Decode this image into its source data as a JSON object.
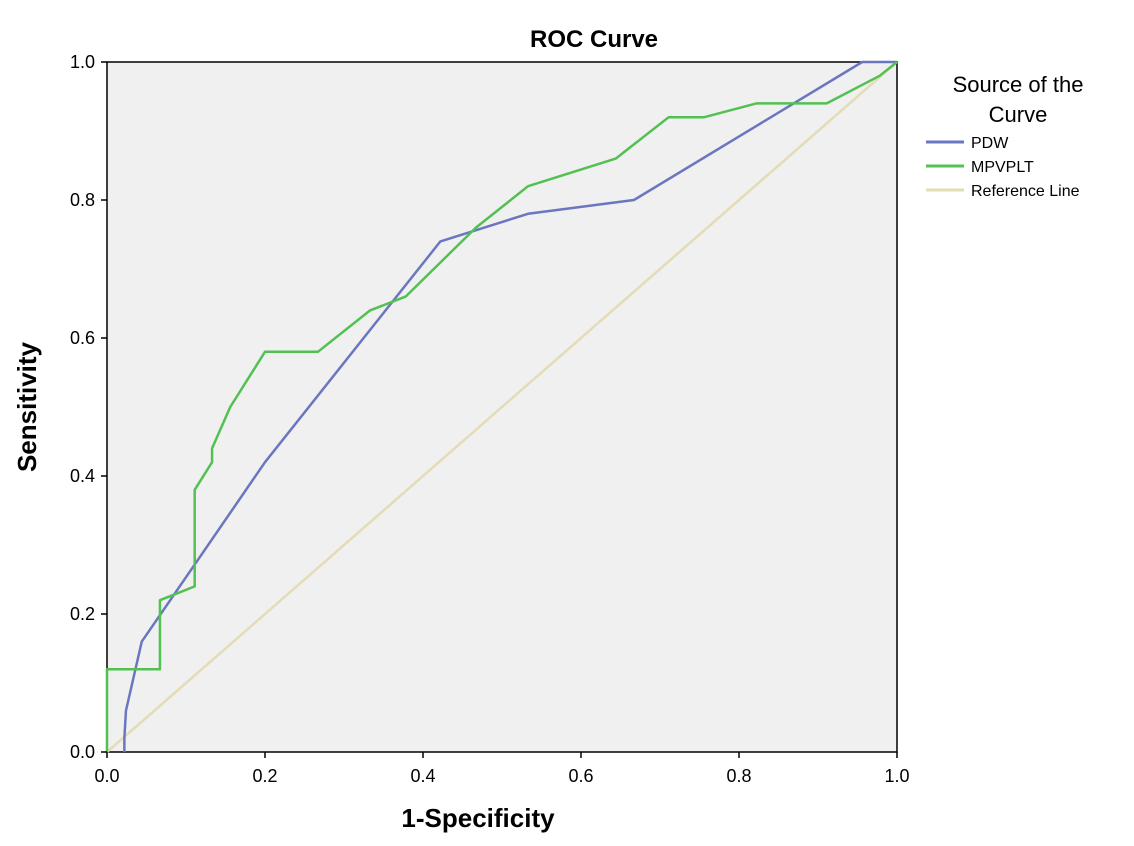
{
  "chart_data": {
    "type": "line",
    "title": "ROC Curve",
    "xlabel": "1-Specificity",
    "ylabel": "Sensitivity",
    "xlim": [
      0,
      1
    ],
    "ylim": [
      0,
      1
    ],
    "x_ticks": [
      "0.0",
      "0.2",
      "0.4",
      "0.6",
      "0.8",
      "1.0"
    ],
    "y_ticks": [
      "0.0",
      "0.2",
      "0.4",
      "0.6",
      "0.8",
      "1.0"
    ],
    "grid": false,
    "legend": {
      "title_line1": "Source of the",
      "title_line2": "Curve",
      "placement": "right"
    },
    "series": [
      {
        "name": "PDW",
        "color": "#6a77c0",
        "points": [
          [
            0.022,
            0
          ],
          [
            0.022,
            0.02
          ],
          [
            0.024,
            0.06
          ],
          [
            0.044,
            0.16
          ],
          [
            0.2,
            0.42
          ],
          [
            0.422,
            0.74
          ],
          [
            0.533,
            0.78
          ],
          [
            0.667,
            0.8
          ],
          [
            0.956,
            1.0
          ],
          [
            1.0,
            1.0
          ]
        ]
      },
      {
        "name": "MPVPLT",
        "color": "#52c152",
        "points": [
          [
            0,
            0
          ],
          [
            0,
            0.12
          ],
          [
            0.067,
            0.12
          ],
          [
            0.067,
            0.22
          ],
          [
            0.089,
            0.23
          ],
          [
            0.111,
            0.24
          ],
          [
            0.111,
            0.38
          ],
          [
            0.133,
            0.42
          ],
          [
            0.133,
            0.44
          ],
          [
            0.156,
            0.5
          ],
          [
            0.2,
            0.58
          ],
          [
            0.267,
            0.58
          ],
          [
            0.333,
            0.64
          ],
          [
            0.378,
            0.66
          ],
          [
            0.467,
            0.76
          ],
          [
            0.533,
            0.82
          ],
          [
            0.644,
            0.86
          ],
          [
            0.711,
            0.92
          ],
          [
            0.756,
            0.92
          ],
          [
            0.822,
            0.94
          ],
          [
            0.911,
            0.94
          ],
          [
            0.978,
            0.98
          ],
          [
            1.0,
            1.0
          ]
        ]
      },
      {
        "name": "Reference Line",
        "color": "#e3dcb6",
        "points": [
          [
            0,
            0
          ],
          [
            1,
            1
          ]
        ]
      }
    ]
  }
}
